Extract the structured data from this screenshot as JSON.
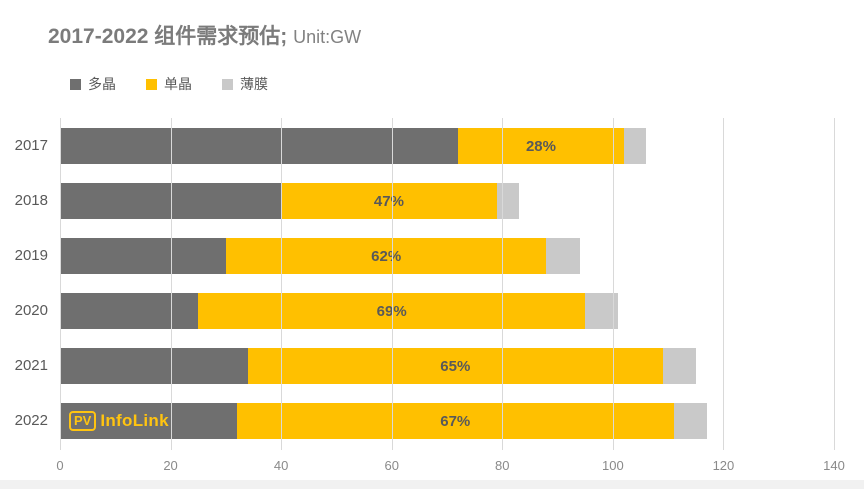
{
  "title": {
    "main": "2017-2022 组件需求预估;",
    "unit": "Unit:GW"
  },
  "legend": [
    {
      "label": "多晶",
      "color": "#6f6f6f"
    },
    {
      "label": "单晶",
      "color": "#ffc000"
    },
    {
      "label": "薄膜",
      "color": "#c9c9c9"
    }
  ],
  "logo": {
    "pv": "PV",
    "name": "InfoLink"
  },
  "chart_data": {
    "type": "bar",
    "orientation": "horizontal",
    "stacked": true,
    "title": "2017-2022 组件需求预估; Unit:GW",
    "categories": [
      "2017",
      "2018",
      "2019",
      "2020",
      "2021",
      "2022"
    ],
    "series": [
      {
        "name": "多晶",
        "color": "#6f6f6f",
        "values": [
          72,
          40,
          30,
          25,
          34,
          32
        ]
      },
      {
        "name": "单晶",
        "color": "#ffc000",
        "values": [
          30,
          39,
          58,
          70,
          75,
          79
        ]
      },
      {
        "name": "薄膜",
        "color": "#c9c9c9",
        "values": [
          4,
          4,
          6,
          6,
          6,
          6
        ]
      }
    ],
    "totals": [
      106,
      83,
      94,
      101,
      115,
      117
    ],
    "mono_share_labels": [
      "28%",
      "47%",
      "62%",
      "69%",
      "65%",
      "67%"
    ],
    "xlim": [
      0,
      140
    ],
    "xticks": [
      0,
      20,
      40,
      60,
      80,
      100,
      120,
      140
    ],
    "grid": true,
    "legend_position": "top-left"
  }
}
